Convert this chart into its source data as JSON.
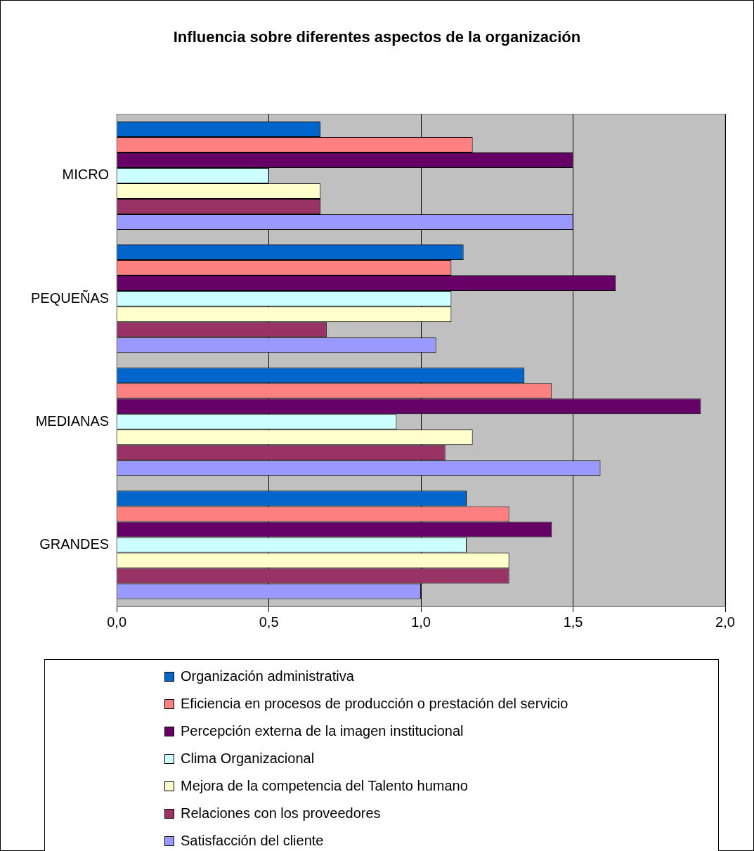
{
  "chart_data": {
    "type": "bar",
    "orientation": "horizontal",
    "title": "Influencia sobre diferentes aspectos de la organización",
    "categories": [
      "MICRO",
      "PEQUEÑAS",
      "MEDIANAS",
      "GRANDES"
    ],
    "series": [
      {
        "name": "Organización administrativa",
        "color": "#0066cc",
        "values": [
          0.67,
          1.14,
          1.34,
          1.15
        ]
      },
      {
        "name": "Eficiencia en procesos de producción o prestación del servicio",
        "color": "#ff8080",
        "values": [
          1.17,
          1.1,
          1.43,
          1.29
        ]
      },
      {
        "name": "Percepción externa de la imagen institucional",
        "color": "#660066",
        "values": [
          1.5,
          1.64,
          1.92,
          1.43
        ]
      },
      {
        "name": "Clima Organizacional",
        "color": "#ccffff",
        "values": [
          0.5,
          1.1,
          0.92,
          1.15
        ]
      },
      {
        "name": "Mejora de la competencia del Talento humano",
        "color": "#ffffcc",
        "values": [
          0.67,
          1.1,
          1.17,
          1.29
        ]
      },
      {
        "name": "Relaciones con los proveedores",
        "color": "#993366",
        "values": [
          0.67,
          0.69,
          1.08,
          1.29
        ]
      },
      {
        "name": "Satisfacción del cliente",
        "color": "#9999ff",
        "values": [
          1.5,
          1.05,
          1.59,
          1.0
        ]
      }
    ],
    "xlim": [
      0,
      2
    ],
    "xticks": [
      {
        "value": 0,
        "label": "0,0"
      },
      {
        "value": 0.5,
        "label": "0,5"
      },
      {
        "value": 1,
        "label": "1,0"
      },
      {
        "value": 1.5,
        "label": "1,5"
      },
      {
        "value": 2,
        "label": "2,0"
      }
    ],
    "grid": "x",
    "legend": "bottom"
  }
}
